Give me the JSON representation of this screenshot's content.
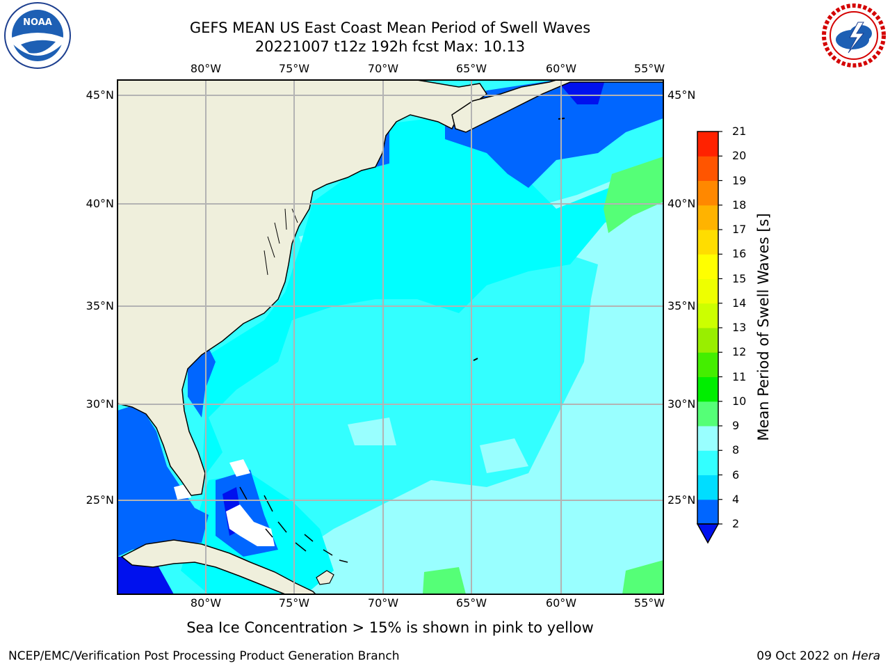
{
  "header": {
    "title_line1": "GEFS MEAN US East Coast Mean Period of Swell Waves",
    "title_line2": "20221007 t12z 192h fcst   Max: 10.13"
  },
  "logos": {
    "left": {
      "icon": "noaa-logo",
      "text": "NOAA"
    },
    "right": {
      "icon": "nws-logo",
      "text": "NATIONAL WEATHER SERVICE"
    }
  },
  "map": {
    "lon_ticks_top": [
      "80°W",
      "75°W",
      "70°W",
      "65°W",
      "60°W",
      "55°W"
    ],
    "lon_ticks_bottom": [
      "80°W",
      "75°W",
      "70°W",
      "65°W",
      "60°W",
      "55°W"
    ],
    "lat_ticks_left": [
      "45°N",
      "40°N",
      "35°N",
      "30°N",
      "25°N"
    ],
    "lat_ticks_right": [
      "45°N",
      "40°N",
      "35°N",
      "30°N",
      "25°N"
    ],
    "land_color": "#efefdc",
    "grid_color": "#b3b3b3"
  },
  "colorbar": {
    "title": "Mean Period of Swell Waves [s]",
    "tick_labels": [
      "2",
      "4",
      "6",
      "8",
      "9",
      "10",
      "11",
      "12",
      "13",
      "14",
      "15",
      "16",
      "17",
      "18",
      "19",
      "20",
      "21"
    ],
    "colors": [
      "#0066ff",
      "#00ddff",
      "#33ffff",
      "#99ffff",
      "#55ff77",
      "#00ee00",
      "#44ee00",
      "#99ee00",
      "#ccff00",
      "#eeff00",
      "#ffff00",
      "#ffdd00",
      "#ffb300",
      "#ff8800",
      "#ff5500",
      "#ff2200"
    ],
    "under_color": "#0011ee"
  },
  "footer": {
    "note": "Sea Ice Concentration > 15% is shown in pink to yellow",
    "left": "NCEP/EMC/Verification Post Processing Product Generation Branch",
    "date": "09 Oct 2022 on",
    "host": "Hera"
  }
}
